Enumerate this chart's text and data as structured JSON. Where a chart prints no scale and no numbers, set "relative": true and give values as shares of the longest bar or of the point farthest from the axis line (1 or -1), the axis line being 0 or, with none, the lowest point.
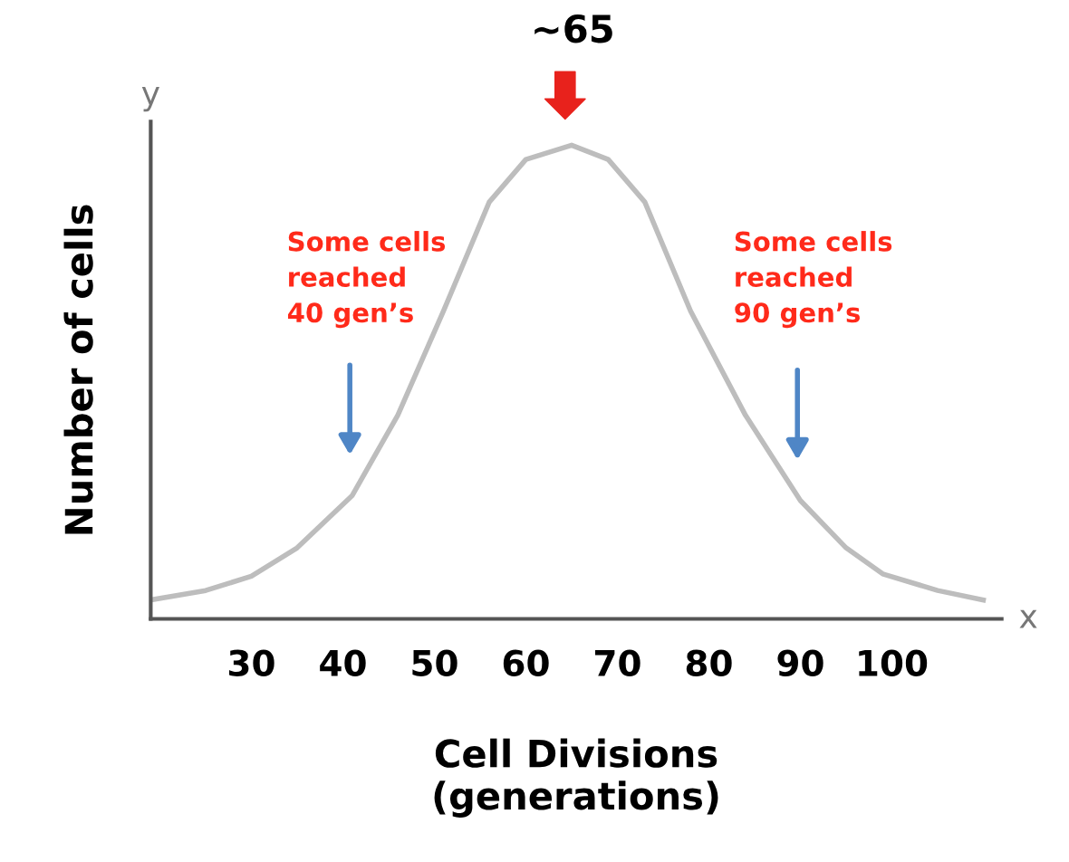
{
  "chart_data": {
    "type": "line",
    "relative": true,
    "xlabel": "Cell Divisions\n(generations)",
    "ylabel": "Number of cells",
    "xlim": [
      19,
      112
    ],
    "xticks": [
      30,
      40,
      50,
      60,
      70,
      80,
      90,
      100
    ],
    "grid": false,
    "legend": false,
    "marker": "none",
    "line_style": "solid",
    "series": [
      {
        "color": "#bdbdbd",
        "x": [
          19,
          25,
          30,
          35,
          41,
          46,
          51,
          56,
          60,
          65,
          69,
          73,
          78,
          84,
          90,
          95,
          99,
          105,
          110
        ],
        "values": [
          0.04,
          0.06,
          0.09,
          0.15,
          0.26,
          0.43,
          0.65,
          0.88,
          0.97,
          1.0,
          0.97,
          0.88,
          0.65,
          0.43,
          0.25,
          0.15,
          0.095,
          0.06,
          0.04
        ]
      }
    ],
    "annotations": [
      "y",
      "x",
      "~65",
      "Some cells\nreached\n40 gen’s",
      "Some cells\nreached\n90 gen’s"
    ]
  }
}
